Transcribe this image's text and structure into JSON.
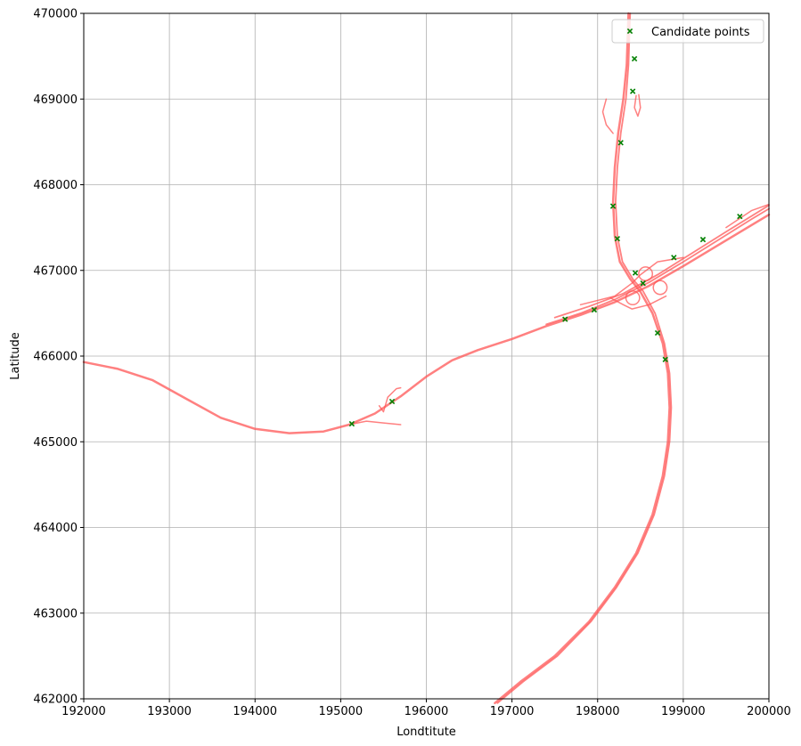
{
  "chart_data": {
    "type": "scatter",
    "title": "",
    "xlabel": "Londtitute",
    "ylabel": "Latitude",
    "xlim": [
      192000,
      200000
    ],
    "ylim": [
      462000,
      470000
    ],
    "xticks": [
      192000,
      193000,
      194000,
      195000,
      196000,
      197000,
      198000,
      199000,
      200000
    ],
    "yticks": [
      462000,
      463000,
      464000,
      465000,
      466000,
      467000,
      468000,
      469000,
      470000
    ],
    "xtick_labels": [
      "192000",
      "193000",
      "194000",
      "195000",
      "196000",
      "197000",
      "198000",
      "199000",
      "200000"
    ],
    "ytick_labels": [
      "462000",
      "463000",
      "464000",
      "465000",
      "466000",
      "467000",
      "468000",
      "469000",
      "470000"
    ],
    "grid": true,
    "legend": {
      "position": "top-right",
      "entries": [
        "Candidate points"
      ]
    },
    "series": [
      {
        "name": "Candidate points",
        "marker": "x",
        "color": "#008000",
        "points": [
          [
            195130,
            465210
          ],
          [
            195600,
            465470
          ],
          [
            197620,
            466430
          ],
          [
            197960,
            466540
          ],
          [
            198180,
            467750
          ],
          [
            198230,
            467370
          ],
          [
            198270,
            468490
          ],
          [
            198410,
            469090
          ],
          [
            198430,
            469470
          ],
          [
            198440,
            466970
          ],
          [
            198530,
            466850
          ],
          [
            198700,
            466270
          ],
          [
            198790,
            465960
          ],
          [
            198890,
            467150
          ],
          [
            199230,
            467360
          ],
          [
            199660,
            467630
          ]
        ]
      }
    ],
    "road_network": {
      "color": "#ff5555",
      "lines": [
        {
          "width": 2.5,
          "points": [
            [
              192000,
              465930
            ],
            [
              192400,
              465850
            ],
            [
              192800,
              465720
            ],
            [
              193200,
              465500
            ],
            [
              193600,
              465280
            ],
            [
              194000,
              465150
            ],
            [
              194400,
              465100
            ],
            [
              194800,
              465120
            ],
            [
              195100,
              465200
            ],
            [
              195400,
              465330
            ],
            [
              195700,
              465530
            ],
            [
              196000,
              465760
            ],
            [
              196300,
              465950
            ],
            [
              196600,
              466070
            ],
            [
              197000,
              466200
            ],
            [
              197400,
              466350
            ],
            [
              197800,
              466480
            ],
            [
              198200,
              466630
            ],
            [
              198600,
              466820
            ],
            [
              199000,
              467050
            ],
            [
              199400,
              467290
            ],
            [
              199800,
              467530
            ],
            [
              200000,
              467650
            ]
          ]
        },
        {
          "width": 1.8,
          "points": [
            [
              197400,
              466370
            ],
            [
              197800,
              466500
            ],
            [
              198200,
              466660
            ],
            [
              198600,
              466860
            ],
            [
              199000,
              467100
            ],
            [
              199400,
              467350
            ],
            [
              199800,
              467600
            ],
            [
              200000,
              467720
            ]
          ]
        },
        {
          "width": 1.8,
          "points": [
            [
              197500,
              466450
            ],
            [
              197900,
              466580
            ],
            [
              198300,
              466730
            ],
            [
              198700,
              466950
            ],
            [
              199100,
              467200
            ],
            [
              199500,
              467450
            ],
            [
              200000,
              467760
            ]
          ]
        },
        {
          "width": 1.5,
          "points": [
            [
              199500,
              467500
            ],
            [
              199800,
              467700
            ],
            [
              200000,
              467770
            ]
          ]
        },
        {
          "width": 2.5,
          "points": [
            [
              198360,
              470000
            ],
            [
              198350,
              469700
            ],
            [
              198340,
              469400
            ],
            [
              198300,
              469000
            ],
            [
              198240,
              468600
            ],
            [
              198200,
              468200
            ],
            [
              198180,
              467800
            ],
            [
              198200,
              467400
            ],
            [
              198260,
              467100
            ],
            [
              198380,
              466900
            ],
            [
              198500,
              466750
            ],
            [
              198640,
              466500
            ],
            [
              198760,
              466150
            ],
            [
              198820,
              465800
            ],
            [
              198840,
              465400
            ],
            [
              198820,
              465000
            ],
            [
              198760,
              464600
            ],
            [
              198640,
              464150
            ],
            [
              198450,
              463700
            ],
            [
              198200,
              463300
            ],
            [
              197900,
              462900
            ],
            [
              197500,
              462500
            ],
            [
              197100,
              462200
            ],
            [
              196800,
              461950
            ]
          ]
        },
        {
          "width": 1.8,
          "points": [
            [
              198380,
              470000
            ],
            [
              198370,
              469700
            ],
            [
              198360,
              469400
            ],
            [
              198330,
              469000
            ],
            [
              198270,
              468600
            ],
            [
              198230,
              468200
            ],
            [
              198210,
              467800
            ],
            [
              198230,
              467400
            ],
            [
              198290,
              467100
            ],
            [
              198410,
              466900
            ],
            [
              198530,
              466760
            ],
            [
              198670,
              466500
            ],
            [
              198780,
              466150
            ],
            [
              198840,
              465800
            ],
            [
              198860,
              465400
            ],
            [
              198840,
              465000
            ],
            [
              198780,
              464600
            ],
            [
              198660,
              464150
            ],
            [
              198470,
              463700
            ],
            [
              198220,
              463300
            ],
            [
              197920,
              462900
            ],
            [
              197530,
              462500
            ],
            [
              197130,
              462200
            ],
            [
              196830,
              461950
            ]
          ]
        },
        {
          "width": 1.5,
          "points": [
            [
              195150,
              465210
            ],
            [
              195300,
              465240
            ],
            [
              195500,
              465220
            ],
            [
              195700,
              465200
            ]
          ]
        },
        {
          "width": 1.5,
          "points": [
            [
              195450,
              465420
            ],
            [
              195500,
              465350
            ],
            [
              195550,
              465520
            ],
            [
              195650,
              465620
            ],
            [
              195700,
              465630
            ]
          ]
        },
        {
          "width": 1.5,
          "points": [
            [
              198100,
              469000
            ],
            [
              198060,
              468850
            ],
            [
              198100,
              468700
            ],
            [
              198180,
              468600
            ]
          ]
        },
        {
          "width": 1.5,
          "points": [
            [
              198450,
              469040
            ],
            [
              198430,
              468900
            ],
            [
              198470,
              468800
            ],
            [
              198500,
              468900
            ],
            [
              198480,
              469050
            ]
          ]
        },
        {
          "width": 1.5,
          "points": [
            [
              197800,
              466600
            ],
            [
              198200,
              466700
            ],
            [
              198400,
              466850
            ],
            [
              198500,
              466950
            ],
            [
              198700,
              467100
            ],
            [
              199000,
              467150
            ]
          ]
        },
        {
          "width": 1.5,
          "points": [
            [
              198150,
              466680
            ],
            [
              198300,
              466600
            ],
            [
              198400,
              466550
            ],
            [
              198600,
              466600
            ],
            [
              198800,
              466700
            ]
          ]
        }
      ],
      "loops": [
        {
          "center": [
            198560,
            466960
          ],
          "r": 80
        },
        {
          "center": [
            198730,
            466800
          ],
          "r": 80
        },
        {
          "center": [
            198410,
            466680
          ],
          "r": 80
        }
      ]
    }
  }
}
